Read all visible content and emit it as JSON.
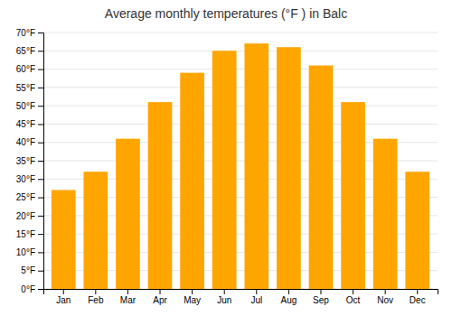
{
  "chart_data": {
    "type": "bar",
    "title": "Average monthly temperatures (°F ) in Balc",
    "categories": [
      "Jan",
      "Feb",
      "Mar",
      "Apr",
      "May",
      "Jun",
      "Jul",
      "Aug",
      "Sep",
      "Oct",
      "Nov",
      "Dec"
    ],
    "values": [
      27,
      32,
      41,
      51,
      59,
      65,
      67,
      66,
      61,
      51,
      41,
      32
    ],
    "color": "#FFA500",
    "ylim": [
      0,
      70
    ],
    "yticks": [
      {
        "value": 0,
        "label": "0°F"
      },
      {
        "value": 5,
        "label": "5°F"
      },
      {
        "value": 10,
        "label": "10°F"
      },
      {
        "value": 15,
        "label": "15°F"
      },
      {
        "value": 20,
        "label": "20°F"
      },
      {
        "value": 25,
        "label": "25°F"
      },
      {
        "value": 30,
        "label": "30°F"
      },
      {
        "value": 35,
        "label": "35°F"
      },
      {
        "value": 40,
        "label": "40°F"
      },
      {
        "value": 45,
        "label": "45°F"
      },
      {
        "value": 50,
        "label": "50°F"
      },
      {
        "value": 55,
        "label": "55°F"
      },
      {
        "value": 60,
        "label": "60°F"
      },
      {
        "value": 65,
        "label": "65°F"
      },
      {
        "value": 70,
        "label": "70°F"
      }
    ],
    "grid": true
  }
}
